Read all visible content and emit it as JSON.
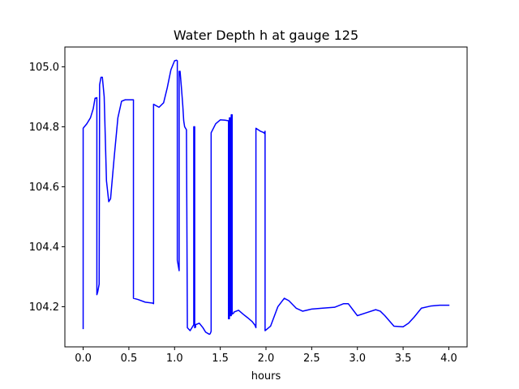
{
  "chart_data": {
    "type": "line",
    "title": "Water Depth h at gauge 125",
    "xlabel": "hours",
    "ylabel": "",
    "xlim": [
      -0.2,
      4.2
    ],
    "ylim": [
      104.066,
      105.066
    ],
    "xticks": [
      0.0,
      0.5,
      1.0,
      1.5,
      2.0,
      2.5,
      3.0,
      3.5,
      4.0
    ],
    "xtick_labels": [
      "0.0",
      "0.5",
      "1.0",
      "1.5",
      "2.0",
      "2.5",
      "3.0",
      "3.5",
      "4.0"
    ],
    "yticks": [
      104.2,
      104.4,
      104.6,
      104.8,
      105.0
    ],
    "ytick_labels": [
      "104.2",
      "104.4",
      "104.6",
      "104.8",
      "105.0"
    ],
    "grid": false,
    "series": [
      {
        "color": "#0000ff",
        "x": [
          0.0,
          0.0,
          0.0,
          0.005,
          0.04,
          0.08,
          0.11,
          0.13,
          0.15,
          0.15,
          0.15,
          0.16,
          0.175,
          0.18,
          0.195,
          0.21,
          0.23,
          0.255,
          0.28,
          0.3,
          0.34,
          0.38,
          0.42,
          0.46,
          0.5,
          0.54,
          0.55,
          0.55,
          0.6,
          0.68,
          0.76,
          0.77,
          0.77,
          0.83,
          0.88,
          0.92,
          0.96,
          1.0,
          1.02,
          1.03,
          1.03,
          1.05,
          1.05,
          1.05,
          1.06,
          1.075,
          1.09,
          1.1,
          1.11,
          1.13,
          1.14,
          1.14,
          1.17,
          1.21,
          1.21,
          1.22,
          1.22,
          1.23,
          1.23,
          1.27,
          1.31,
          1.34,
          1.38,
          1.39,
          1.4,
          1.4,
          1.45,
          1.5,
          1.55,
          1.59,
          1.59,
          1.6,
          1.6,
          1.61,
          1.61,
          1.62,
          1.62,
          1.63,
          1.63,
          1.65,
          1.65,
          1.7,
          1.75,
          1.8,
          1.85,
          1.88,
          1.89,
          1.89,
          1.94,
          1.98,
          1.98,
          1.99,
          1.99,
          2.05,
          2.13,
          2.2,
          2.25,
          2.33,
          2.4,
          2.5,
          2.62,
          2.75,
          2.85,
          2.9,
          2.95,
          3.0,
          3.1,
          3.2,
          3.25,
          3.3,
          3.4,
          3.5,
          3.56,
          3.62,
          3.7,
          3.8,
          3.9,
          4.0
        ],
        "y": [
          104.127,
          104.13,
          104.795,
          104.797,
          104.81,
          104.83,
          104.86,
          104.895,
          104.897,
          104.24,
          104.24,
          104.25,
          104.275,
          104.94,
          104.965,
          104.965,
          104.9,
          104.62,
          104.55,
          104.56,
          104.7,
          104.83,
          104.885,
          104.89,
          104.89,
          104.89,
          104.89,
          104.228,
          104.224,
          104.215,
          104.212,
          104.21,
          104.875,
          104.865,
          104.88,
          104.93,
          104.99,
          105.02,
          105.022,
          105.02,
          104.355,
          104.32,
          104.985,
          104.985,
          104.985,
          104.93,
          104.87,
          104.82,
          104.8,
          104.79,
          104.13,
          104.13,
          104.12,
          104.14,
          104.8,
          104.8,
          104.13,
          104.132,
          104.14,
          104.145,
          104.13,
          104.115,
          104.108,
          104.11,
          104.118,
          104.78,
          104.81,
          104.823,
          104.822,
          104.82,
          104.16,
          104.16,
          104.83,
          104.83,
          104.17,
          104.17,
          104.84,
          104.84,
          104.175,
          104.18,
          104.182,
          104.188,
          104.175,
          104.163,
          104.15,
          104.138,
          104.13,
          104.795,
          104.785,
          104.78,
          104.778,
          104.785,
          104.12,
          104.135,
          104.2,
          104.228,
          104.22,
          104.195,
          104.185,
          104.192,
          104.195,
          104.198,
          104.21,
          104.21,
          104.19,
          104.17,
          104.18,
          104.19,
          104.185,
          104.17,
          104.135,
          104.133,
          104.145,
          104.165,
          104.195,
          104.202,
          104.205,
          104.205
        ]
      }
    ]
  }
}
